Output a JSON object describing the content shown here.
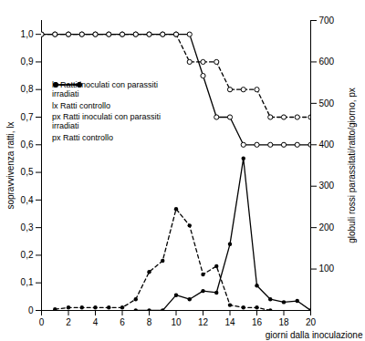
{
  "chart_data": {
    "type": "line",
    "x_label": "giorni dalla inoculazione",
    "y_label": "sopravvivenza ratti, lx",
    "y2_label": "globuli rossi parassitati/ratto/giorno, px",
    "x": [
      0,
      1,
      2,
      3,
      4,
      5,
      6,
      7,
      8,
      9,
      10,
      11,
      12,
      13,
      14,
      15,
      16,
      17,
      18,
      19,
      20
    ],
    "xlim": [
      0,
      20
    ],
    "xticks": [
      0,
      2,
      4,
      6,
      8,
      10,
      12,
      14,
      16,
      18,
      20
    ],
    "ylim": [
      0,
      1.05
    ],
    "yticks": [
      0,
      {
        "value": 0.1,
        "label": "0,1"
      },
      {
        "value": 0.2,
        "label": "0,2"
      },
      {
        "value": 0.3,
        "label": "0,3"
      },
      {
        "value": 0.4,
        "label": "0,4"
      },
      {
        "value": 0.5,
        "label": "0,5"
      },
      {
        "value": 0.6,
        "label": "0,6"
      },
      {
        "value": 0.7,
        "label": "0,7"
      },
      {
        "value": 0.8,
        "label": "0,8"
      },
      {
        "value": 0.9,
        "label": "0,9"
      },
      {
        "value": 1.0,
        "label": "1,0"
      }
    ],
    "y2lim": [
      0,
      700
    ],
    "y2ticks": [
      100,
      200,
      300,
      400,
      500,
      600,
      700
    ],
    "grid": false,
    "legend": "left",
    "series": [
      {
        "name": "lx Ratti inoculati con parassiti irradiati",
        "color": "#000000",
        "marker": "circle",
        "line_style": "solid",
        "values": [
          1,
          1,
          1,
          1,
          1,
          1,
          1,
          1,
          1,
          1,
          1,
          1,
          0.85,
          0.7,
          0.7,
          0.6,
          0.6,
          0.6,
          0.6,
          0.6,
          0.6
        ]
      },
      {
        "name": "lx Ratti controllo",
        "color": "#000000",
        "marker": "circle",
        "line_style": "dashed",
        "values": [
          1,
          1,
          1,
          1,
          1,
          1,
          1,
          1,
          1,
          1,
          1,
          0.9,
          0.9,
          0.9,
          0.8,
          0.8,
          0.8,
          0.7,
          0.7,
          0.7,
          0.7
        ]
      },
      {
        "name": "px Ratti inoculati con parassiti irradiati",
        "color": "#000000",
        "marker": "dot",
        "line_style": "solid",
        "axis": "y2",
        "values": [
          null,
          null,
          null,
          null,
          null,
          null,
          null,
          0,
          0,
          0,
          37,
          27,
          47,
          43,
          160,
          367,
          60,
          27,
          20,
          23,
          0
        ]
      },
      {
        "name": "px Ratti controllo",
        "color": "#000000",
        "marker": "dot",
        "line_style": "dashed",
        "axis": "y2",
        "values": [
          null,
          3,
          7,
          7,
          7,
          7,
          7,
          27,
          93,
          120,
          245,
          205,
          87,
          107,
          13,
          7,
          7,
          0,
          null,
          null,
          null
        ]
      }
    ]
  }
}
